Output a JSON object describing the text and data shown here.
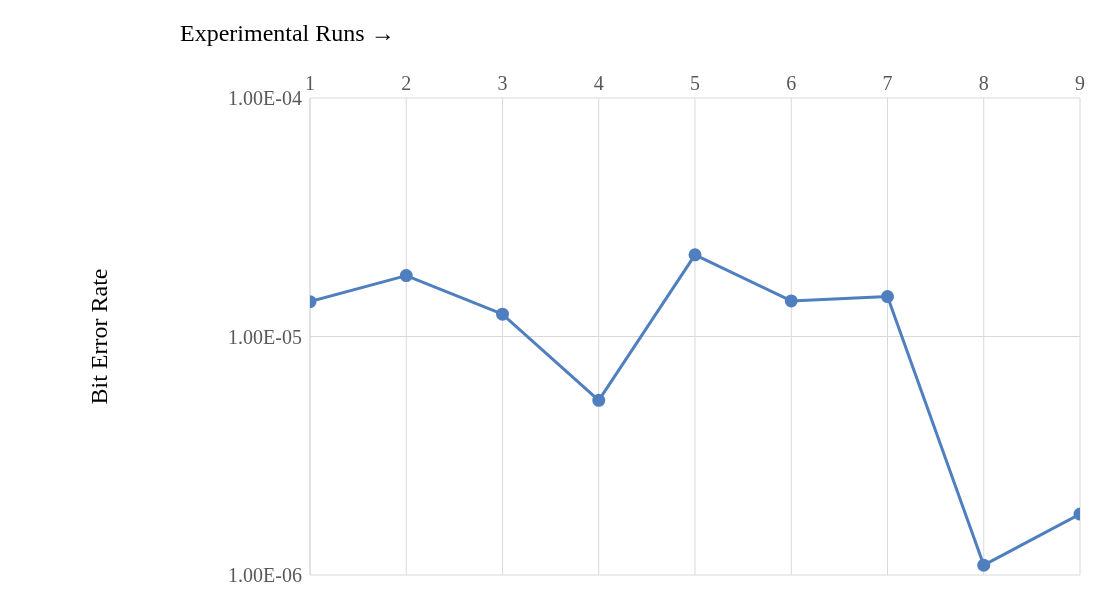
{
  "chart_data": {
    "type": "line",
    "xlabel": "Experimental Runs →",
    "ylabel": "Bit Error Rate",
    "x": [
      1,
      2,
      3,
      4,
      5,
      6,
      7,
      8,
      9
    ],
    "series": [
      {
        "color": "#4f7fbf",
        "values": [
          1.4e-05,
          1.8e-05,
          1.24e-05,
          5.4e-06,
          2.2e-05,
          1.41e-05,
          1.47e-05,
          1.1e-06,
          1.8e-06
        ]
      }
    ],
    "xlim": [
      1,
      9
    ],
    "xticks": [
      1,
      2,
      3,
      4,
      5,
      6,
      7,
      8,
      9
    ],
    "ylim": [
      1e-06,
      0.0001
    ],
    "yticks": [
      {
        "value": 1e-06,
        "label": "1.00E-06"
      },
      {
        "value": 1e-05,
        "label": "1.00E-05"
      },
      {
        "value": 0.0001,
        "label": "1.00E-04"
      }
    ],
    "log": "y",
    "grid": true,
    "marker": "circle",
    "line_style": "solid",
    "legend": false
  }
}
